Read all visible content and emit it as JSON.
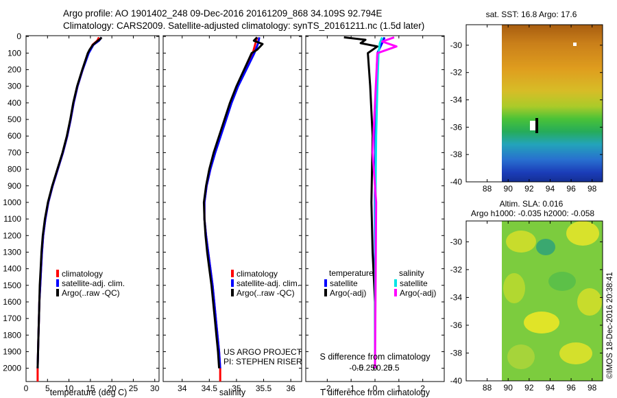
{
  "header": {
    "line1": "Argo profile: AO 1901402_248 09-Dec-2016 20161209_868 34.109S 92.794E",
    "line2": "Climatology: CARS2009. Satellite-adjusted climatology: synTS_20161211.nc (1.5d later)"
  },
  "credit": "©IMOS 18-Dec-2016 20:38:41",
  "depth_ticks": [
    0,
    100,
    200,
    300,
    400,
    500,
    600,
    700,
    800,
    900,
    1000,
    1100,
    1200,
    1300,
    1400,
    1500,
    1600,
    1700,
    1800,
    1900,
    2000
  ],
  "colors": {
    "climatology": "#ff0000",
    "satellite": "#0000ff",
    "argo": "#000000",
    "sat_salinity": "#00e5e5",
    "argo_salinity": "#ff00ff"
  },
  "chart_data": [
    {
      "type": "line",
      "title": "",
      "xlabel": "temperature (deg C)",
      "ylabel": "depth",
      "xlim": [
        0,
        31
      ],
      "ylim": [
        2080,
        -5
      ],
      "xticks": [
        0,
        5,
        10,
        15,
        20,
        25,
        30
      ],
      "xtick_labels": [
        "0",
        "5",
        "10",
        "15",
        "20",
        "25",
        "30"
      ],
      "legend": [
        "climatology",
        "satellite-adj. clim.",
        "Argo(..raw -QC)"
      ],
      "series": [
        {
          "name": "climatology",
          "color": "#ff0000",
          "points": [
            [
              17.0,
              5
            ],
            [
              16.6,
              25
            ],
            [
              15.5,
              50
            ],
            [
              14.5,
              100
            ],
            [
              13.2,
              200
            ],
            [
              12.0,
              300
            ],
            [
              11.1,
              400
            ],
            [
              10.4,
              500
            ],
            [
              9.6,
              600
            ],
            [
              8.6,
              700
            ],
            [
              7.4,
              800
            ],
            [
              6.2,
              900
            ],
            [
              5.2,
              1000
            ],
            [
              4.5,
              1100
            ],
            [
              4.0,
              1200
            ],
            [
              3.7,
              1300
            ],
            [
              3.5,
              1400
            ],
            [
              3.3,
              1500
            ],
            [
              3.1,
              1600
            ],
            [
              3.0,
              1700
            ],
            [
              2.9,
              1800
            ],
            [
              2.8,
              1900
            ],
            [
              2.7,
              2000
            ],
            [
              2.7,
              2080
            ]
          ]
        },
        {
          "name": "satellite-adj. clim.",
          "color": "#0000ff",
          "points": [
            [
              17.6,
              5
            ],
            [
              17.0,
              25
            ],
            [
              15.7,
              50
            ],
            [
              14.6,
              100
            ],
            [
              13.2,
              200
            ],
            [
              12.0,
              300
            ],
            [
              11.1,
              400
            ],
            [
              10.4,
              500
            ],
            [
              9.6,
              600
            ],
            [
              8.6,
              700
            ],
            [
              7.4,
              800
            ],
            [
              6.2,
              900
            ],
            [
              5.2,
              1000
            ],
            [
              4.5,
              1100
            ],
            [
              4.0,
              1200
            ],
            [
              3.7,
              1300
            ],
            [
              3.5,
              1400
            ],
            [
              3.3,
              1500
            ],
            [
              3.1,
              1600
            ],
            [
              3.0,
              1700
            ],
            [
              2.9,
              1800
            ],
            [
              2.8,
              1900
            ],
            [
              2.7,
              2000
            ]
          ]
        },
        {
          "name": "Argo(..raw -QC)",
          "color": "#000000",
          "points": [
            [
              17.6,
              5
            ],
            [
              17.3,
              15
            ],
            [
              16.5,
              30
            ],
            [
              15.6,
              50
            ],
            [
              14.8,
              80
            ],
            [
              14.4,
              100
            ],
            [
              13.1,
              200
            ],
            [
              11.9,
              300
            ],
            [
              11.0,
              400
            ],
            [
              10.3,
              500
            ],
            [
              9.5,
              600
            ],
            [
              8.5,
              700
            ],
            [
              7.3,
              800
            ],
            [
              6.1,
              900
            ],
            [
              5.1,
              1000
            ],
            [
              4.4,
              1100
            ],
            [
              3.9,
              1200
            ],
            [
              3.6,
              1300
            ],
            [
              3.4,
              1400
            ],
            [
              3.2,
              1500
            ],
            [
              3.1,
              1600
            ],
            [
              3.0,
              1700
            ],
            [
              2.9,
              1800
            ],
            [
              2.8,
              1900
            ],
            [
              2.7,
              2000
            ]
          ]
        }
      ]
    },
    {
      "type": "line",
      "title": "",
      "xlabel": "salinity",
      "ylabel": "depth",
      "xlim": [
        33.65,
        36.2
      ],
      "ylim": [
        2080,
        -5
      ],
      "xticks": [
        34,
        34.5,
        35,
        35.5,
        36
      ],
      "xtick_labels": [
        "34",
        "34.5",
        "35",
        "35.5",
        "36"
      ],
      "legend": [
        "climatology",
        "satellite-adj. clim.",
        "Argo(..raw -QC)"
      ],
      "annotation": [
        "US ARGO PROJECT",
        "PI: STEPHEN RISER"
      ],
      "series": [
        {
          "name": "climatology",
          "color": "#ff0000",
          "points": [
            [
              35.38,
              5
            ],
            [
              35.35,
              40
            ],
            [
              35.3,
              100
            ],
            [
              35.16,
              200
            ],
            [
              35.02,
              300
            ],
            [
              34.9,
              400
            ],
            [
              34.8,
              500
            ],
            [
              34.7,
              600
            ],
            [
              34.6,
              700
            ],
            [
              34.52,
              800
            ],
            [
              34.45,
              900
            ],
            [
              34.41,
              1000
            ],
            [
              34.41,
              1100
            ],
            [
              34.44,
              1200
            ],
            [
              34.48,
              1300
            ],
            [
              34.52,
              1400
            ],
            [
              34.56,
              1500
            ],
            [
              34.59,
              1600
            ],
            [
              34.62,
              1700
            ],
            [
              34.65,
              1800
            ],
            [
              34.68,
              1900
            ],
            [
              34.7,
              2000
            ],
            [
              34.7,
              2080
            ]
          ]
        },
        {
          "name": "satellite-adj. clim.",
          "color": "#0000ff",
          "points": [
            [
              35.42,
              5
            ],
            [
              35.4,
              40
            ],
            [
              35.33,
              100
            ],
            [
              35.18,
              200
            ],
            [
              35.03,
              300
            ],
            [
              34.91,
              400
            ],
            [
              34.81,
              500
            ],
            [
              34.71,
              600
            ],
            [
              34.61,
              700
            ],
            [
              34.52,
              800
            ],
            [
              34.45,
              900
            ],
            [
              34.41,
              1000
            ],
            [
              34.41,
              1100
            ],
            [
              34.44,
              1200
            ],
            [
              34.48,
              1300
            ],
            [
              34.52,
              1400
            ],
            [
              34.56,
              1500
            ],
            [
              34.59,
              1600
            ],
            [
              34.62,
              1700
            ],
            [
              34.65,
              1800
            ],
            [
              34.68,
              1900
            ],
            [
              34.7,
              2000
            ]
          ]
        },
        {
          "name": "Argo(..raw -QC)",
          "color": "#000000",
          "points": [
            [
              35.38,
              5
            ],
            [
              35.32,
              25
            ],
            [
              35.48,
              45
            ],
            [
              35.38,
              80
            ],
            [
              35.28,
              100
            ],
            [
              35.14,
              200
            ],
            [
              35.0,
              300
            ],
            [
              34.88,
              400
            ],
            [
              34.78,
              500
            ],
            [
              34.68,
              600
            ],
            [
              34.58,
              700
            ],
            [
              34.5,
              800
            ],
            [
              34.44,
              900
            ],
            [
              34.4,
              1000
            ],
            [
              34.41,
              1100
            ],
            [
              34.43,
              1200
            ],
            [
              34.46,
              1300
            ],
            [
              34.5,
              1400
            ],
            [
              34.54,
              1500
            ],
            [
              34.57,
              1600
            ],
            [
              34.6,
              1700
            ],
            [
              34.63,
              1800
            ],
            [
              34.66,
              1900
            ],
            [
              34.68,
              2000
            ]
          ]
        }
      ]
    },
    {
      "type": "line",
      "title": "",
      "xlabel": "T difference from climatology",
      "xlabel_top": "S difference from climatology",
      "ylabel": "depth",
      "xlim": [
        -2.9,
        2.9
      ],
      "ylim": [
        2080,
        -5
      ],
      "xticks": [
        -2,
        -1,
        0,
        1,
        2
      ],
      "xtick_labels": [
        "-2",
        "-1",
        "0",
        "1",
        "2"
      ],
      "sticks": [
        -0.5,
        -0.25,
        0,
        0.25,
        0.5
      ],
      "stick_labels": [
        "-0.5",
        "-0.25",
        "0",
        "0.25",
        "0.5"
      ],
      "legend_titles": [
        "temperature",
        "salinity"
      ],
      "legend": [
        "satellite",
        "Argo(-adj)",
        "satellite",
        "Argo(-adj)"
      ],
      "series": [
        {
          "name": "temperature satellite",
          "color": "#0000ff",
          "points": [
            [
              0.4,
              5
            ],
            [
              0.3,
              40
            ],
            [
              0.1,
              100
            ],
            [
              0.05,
              300
            ],
            [
              0.02,
              600
            ],
            [
              0.0,
              1000
            ],
            [
              0.0,
              2000
            ]
          ]
        },
        {
          "name": "temperature Argo(-adj)",
          "color": "#000000",
          "points": [
            [
              -1.3,
              5
            ],
            [
              -0.4,
              20
            ],
            [
              -0.6,
              40
            ],
            [
              0.1,
              60
            ],
            [
              -0.3,
              100
            ],
            [
              -0.2,
              300
            ],
            [
              -0.1,
              600
            ],
            [
              -0.15,
              1000
            ],
            [
              -0.1,
              1300
            ],
            [
              0.0,
              1600
            ],
            [
              0.0,
              2000
            ]
          ]
        },
        {
          "name": "salinity satellite",
          "color": "#00e5e5",
          "points": [
            [
              0.3,
              5
            ],
            [
              0.2,
              40
            ],
            [
              0.15,
              100
            ],
            [
              0.1,
              300
            ],
            [
              0.05,
              600
            ],
            [
              0.02,
              1000
            ],
            [
              0.0,
              2000
            ]
          ]
        },
        {
          "name": "salinity Argo(-adj)",
          "color": "#ff00ff",
          "points": [
            [
              0.8,
              5
            ],
            [
              0.3,
              30
            ],
            [
              0.9,
              60
            ],
            [
              0.1,
              100
            ],
            [
              0.0,
              400
            ],
            [
              -0.1,
              700
            ],
            [
              0.05,
              1000
            ],
            [
              0.0,
              2000
            ]
          ]
        }
      ]
    },
    {
      "type": "heatmap",
      "title": "sat. SST: 16.8 Argo: 17.6",
      "xlim": [
        86,
        99
      ],
      "ylim": [
        -40,
        -28.5
      ],
      "xtick_labels": [
        "88",
        "90",
        "92",
        "94",
        "96",
        "98"
      ],
      "ytick_labels": [
        "-30",
        "-32",
        "-34",
        "-36",
        "-38",
        "-40"
      ]
    },
    {
      "type": "heatmap",
      "title": "Altim. SLA: 0.016",
      "subtitle": "Argo h1000: -0.035 h2000: -0.058",
      "xlim": [
        86,
        99
      ],
      "ylim": [
        -40,
        -28.5
      ],
      "xtick_labels": [
        "88",
        "90",
        "92",
        "94",
        "96",
        "98"
      ],
      "ytick_labels": [
        "-30",
        "-32",
        "-34",
        "-36",
        "-38",
        "-40"
      ]
    }
  ]
}
